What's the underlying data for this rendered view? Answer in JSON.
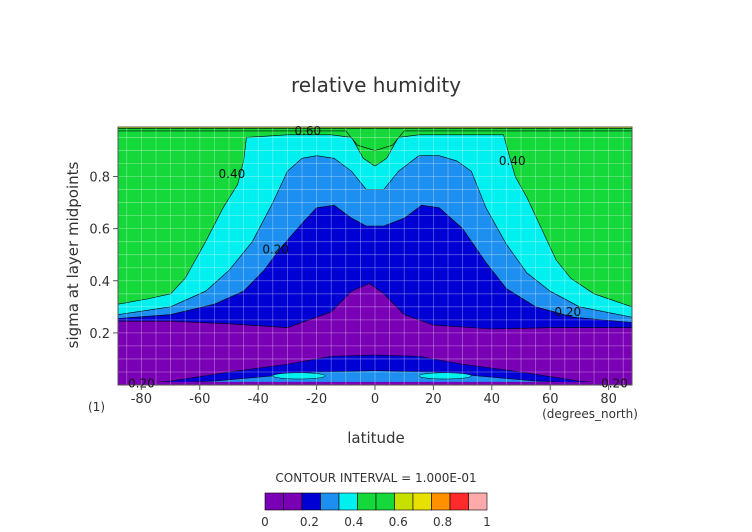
{
  "chart_data": {
    "type": "contour",
    "title": "relative humidity",
    "xlabel": "latitude",
    "ylabel": "sigma at layer midpoints",
    "x_units": "(degrees_north)",
    "frame_label": "(1)",
    "xlim": [
      -88,
      88
    ],
    "ylim": [
      0,
      0.99
    ],
    "x_ticks": [
      -80,
      -60,
      -40,
      -20,
      0,
      20,
      40,
      60,
      80
    ],
    "x_tick_labels": [
      "-80",
      "-60",
      "-40",
      "-20",
      "0",
      "20",
      "40",
      "60",
      "80"
    ],
    "y_ticks": [
      0.2,
      0.4,
      0.6,
      0.8
    ],
    "y_tick_labels": [
      "0.2",
      "0.4",
      "0.6",
      "0.8"
    ],
    "grid": true,
    "contour_interval_text": "CONTOUR INTERVAL = 1.000E-01",
    "contour_labels": [
      {
        "text": "0.60",
        "x": -23,
        "y": 0.975
      },
      {
        "text": "0.40",
        "x": -49,
        "y": 0.81
      },
      {
        "text": "0.40",
        "x": 47,
        "y": 0.86
      },
      {
        "text": "0.20",
        "x": -34,
        "y": 0.52
      },
      {
        "text": "0.20",
        "x": 66,
        "y": 0.28
      },
      {
        "text": "0.20",
        "x": -80,
        "y": 0.005
      },
      {
        "text": "0.20",
        "x": 82,
        "y": 0.005
      }
    ],
    "bands": [
      {
        "min": 0.1,
        "color": "#7a00b5",
        "pts": [
          [
            -88,
            0.245
          ],
          [
            -70,
            0.245
          ],
          [
            -50,
            0.235
          ],
          [
            -30,
            0.22
          ],
          [
            -15,
            0.28
          ],
          [
            -8,
            0.36
          ],
          [
            -2,
            0.39
          ],
          [
            3,
            0.35
          ],
          [
            10,
            0.27
          ],
          [
            20,
            0.23
          ],
          [
            40,
            0.215
          ],
          [
            60,
            0.22
          ],
          [
            88,
            0.22
          ]
        ]
      },
      {
        "min": 0.2,
        "color": "#0000d5",
        "pts": [
          [
            -88,
            0.255
          ],
          [
            -70,
            0.27
          ],
          [
            -55,
            0.31
          ],
          [
            -45,
            0.36
          ],
          [
            -38,
            0.44
          ],
          [
            -32,
            0.53
          ],
          [
            -25,
            0.62
          ],
          [
            -20,
            0.68
          ],
          [
            -14,
            0.69
          ],
          [
            -8,
            0.64
          ],
          [
            -3,
            0.61
          ],
          [
            3,
            0.61
          ],
          [
            10,
            0.64
          ],
          [
            16,
            0.69
          ],
          [
            22,
            0.68
          ],
          [
            30,
            0.6
          ],
          [
            38,
            0.47
          ],
          [
            45,
            0.37
          ],
          [
            55,
            0.3
          ],
          [
            68,
            0.26
          ],
          [
            88,
            0.24
          ]
        ]
      },
      {
        "min": 0.3,
        "color": "#1d8ff0",
        "pts": [
          [
            -88,
            0.27
          ],
          [
            -70,
            0.3
          ],
          [
            -58,
            0.36
          ],
          [
            -50,
            0.44
          ],
          [
            -42,
            0.55
          ],
          [
            -35,
            0.7
          ],
          [
            -30,
            0.82
          ],
          [
            -25,
            0.87
          ],
          [
            -20,
            0.88
          ],
          [
            -14,
            0.87
          ],
          [
            -8,
            0.82
          ],
          [
            -3,
            0.75
          ],
          [
            3,
            0.75
          ],
          [
            8,
            0.82
          ],
          [
            15,
            0.88
          ],
          [
            22,
            0.88
          ],
          [
            28,
            0.86
          ],
          [
            33,
            0.82
          ],
          [
            38,
            0.68
          ],
          [
            45,
            0.54
          ],
          [
            52,
            0.43
          ],
          [
            60,
            0.36
          ],
          [
            70,
            0.3
          ],
          [
            88,
            0.26
          ]
        ]
      },
      {
        "min": 0.4,
        "color": "#00f0f0",
        "pts": [
          [
            -88,
            0.31
          ],
          [
            -78,
            0.33
          ],
          [
            -70,
            0.35
          ],
          [
            -65,
            0.41
          ],
          [
            -58,
            0.55
          ],
          [
            -52,
            0.68
          ],
          [
            -47,
            0.77
          ],
          [
            -45,
            0.86
          ],
          [
            -44,
            0.95
          ],
          [
            -30,
            0.96
          ],
          [
            -15,
            0.96
          ],
          [
            -8,
            0.95
          ],
          [
            -4,
            0.87
          ],
          [
            0,
            0.84
          ],
          [
            4,
            0.87
          ],
          [
            8,
            0.95
          ],
          [
            15,
            0.96
          ],
          [
            30,
            0.96
          ],
          [
            44,
            0.96
          ],
          [
            46,
            0.88
          ],
          [
            48,
            0.8
          ],
          [
            52,
            0.72
          ],
          [
            57,
            0.6
          ],
          [
            62,
            0.48
          ],
          [
            67,
            0.41
          ],
          [
            75,
            0.35
          ],
          [
            88,
            0.3
          ]
        ]
      },
      {
        "min": 0.5,
        "color": "#15d83b",
        "pts": [
          [
            -88,
            0.975
          ],
          [
            -10,
            0.975
          ],
          [
            -6,
            0.92
          ],
          [
            0,
            0.9
          ],
          [
            6,
            0.92
          ],
          [
            10,
            0.975
          ],
          [
            88,
            0.975
          ]
        ]
      },
      {
        "min": 0.6,
        "color": "#c8e000",
        "pts": [
          [
            -88,
            0.985
          ],
          [
            88,
            0.985
          ]
        ]
      },
      {
        "min": 0.7,
        "color": "#ff9000",
        "pts": [
          [
            -88,
            0.99
          ],
          [
            88,
            0.99
          ]
        ]
      }
    ],
    "bottom_bands": [
      {
        "min": 0.2,
        "color": "#0000d5",
        "pts": [
          [
            -88,
            0.0
          ],
          [
            -70,
            0.015
          ],
          [
            -50,
            0.05
          ],
          [
            -30,
            0.08
          ],
          [
            -15,
            0.11
          ],
          [
            0,
            0.115
          ],
          [
            15,
            0.11
          ],
          [
            30,
            0.08
          ],
          [
            50,
            0.05
          ],
          [
            70,
            0.015
          ],
          [
            88,
            0.0
          ]
        ]
      },
      {
        "min": 0.3,
        "color": "#1d8ff0",
        "pts": [
          [
            -88,
            0.0
          ],
          [
            -55,
            0.015
          ],
          [
            -35,
            0.035
          ],
          [
            -20,
            0.05
          ],
          [
            0,
            0.055
          ],
          [
            20,
            0.05
          ],
          [
            35,
            0.035
          ],
          [
            55,
            0.015
          ],
          [
            88,
            0.0
          ]
        ]
      }
    ],
    "bottom_islands": [
      {
        "color": "#1d8ff0",
        "cx": -26,
        "cy": 0.035,
        "rx": 9,
        "ry": 0.012
      },
      {
        "color": "#1d8ff0",
        "cx": 24,
        "cy": 0.035,
        "rx": 9,
        "ry": 0.012
      }
    ],
    "colorbar": {
      "ticks": [
        "0",
        "0.2",
        "0.4",
        "0.6",
        "0.8",
        "1"
      ],
      "colors": [
        "#7a00b5",
        "#7a00b5",
        "#0000d5",
        "#1d8ff0",
        "#00f0f0",
        "#15d83b",
        "#15d83b",
        "#c8e000",
        "#e8e000",
        "#ff9000",
        "#ff2a2a",
        "#ffaaaa"
      ]
    }
  }
}
